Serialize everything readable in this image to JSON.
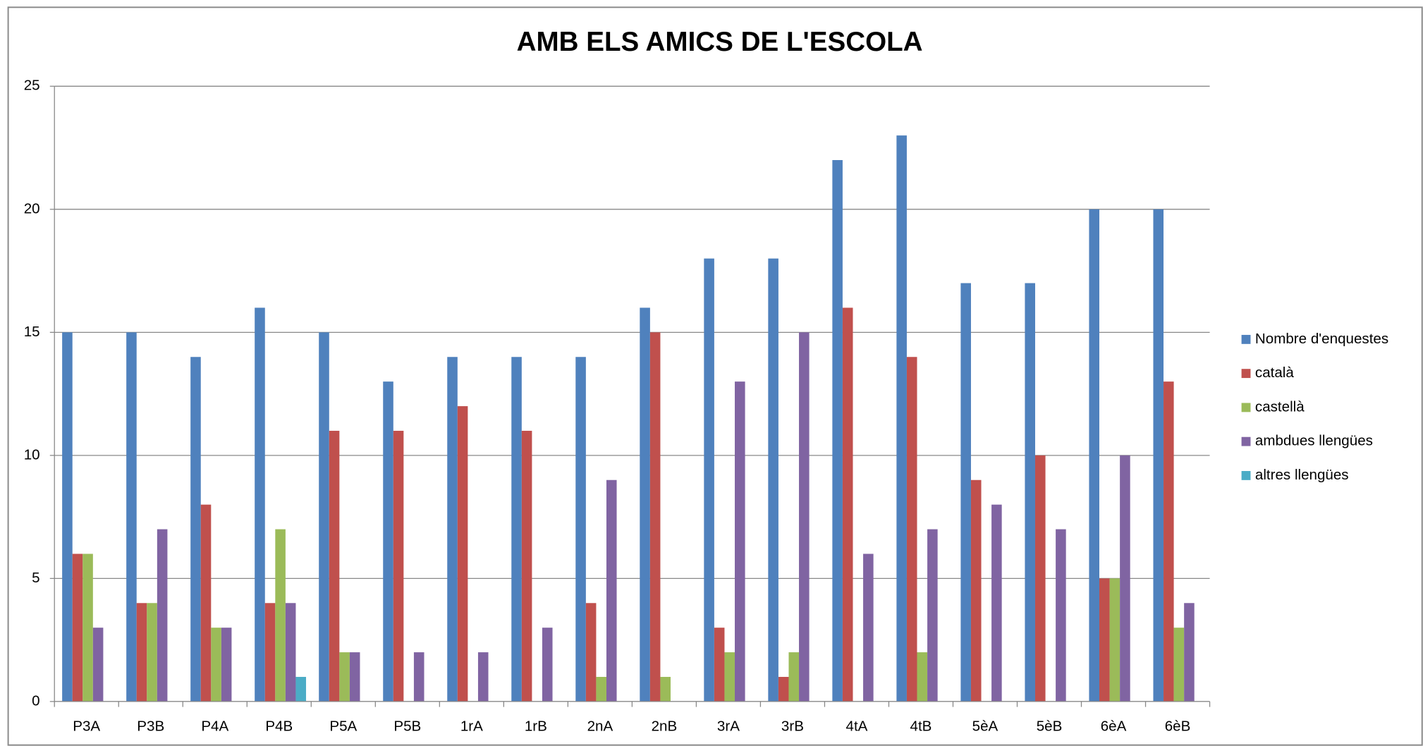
{
  "chart_data": {
    "type": "bar",
    "title": "AMB ELS AMICS DE L'ESCOLA",
    "categories": [
      "P3A",
      "P3B",
      "P4A",
      "P4B",
      "P5A",
      "P5B",
      "1rA",
      "1rB",
      "2nA",
      "2nB",
      "3rA",
      "3rB",
      "4tA",
      "4tB",
      "5èA",
      "5èB",
      "6èA",
      "6èB"
    ],
    "series": [
      {
        "name": "Nombre d'enquestes",
        "color": "#4f81bd",
        "values": [
          15,
          15,
          14,
          16,
          15,
          13,
          14,
          14,
          14,
          16,
          18,
          18,
          22,
          23,
          17,
          17,
          20,
          20
        ]
      },
      {
        "name": "català",
        "color": "#c0504d",
        "values": [
          6,
          4,
          8,
          4,
          11,
          11,
          12,
          11,
          4,
          15,
          3,
          1,
          16,
          14,
          9,
          10,
          5,
          13
        ]
      },
      {
        "name": "castellà",
        "color": "#9bbb59",
        "values": [
          6,
          4,
          3,
          7,
          2,
          0,
          0,
          0,
          1,
          1,
          2,
          2,
          0,
          2,
          0,
          0,
          5,
          3
        ]
      },
      {
        "name": "ambdues llengües",
        "color": "#8064a2",
        "values": [
          3,
          7,
          3,
          4,
          2,
          2,
          2,
          3,
          9,
          0,
          13,
          15,
          6,
          7,
          8,
          7,
          10,
          4
        ]
      },
      {
        "name": "altres llengües",
        "color": "#4bacc6",
        "values": [
          0,
          0,
          0,
          1,
          0,
          0,
          0,
          0,
          0,
          0,
          0,
          0,
          0,
          0,
          0,
          0,
          0,
          0
        ]
      }
    ],
    "ylim": [
      0,
      25
    ],
    "yticks": [
      0,
      5,
      10,
      15,
      20,
      25
    ],
    "grid": true,
    "legend": "right"
  }
}
